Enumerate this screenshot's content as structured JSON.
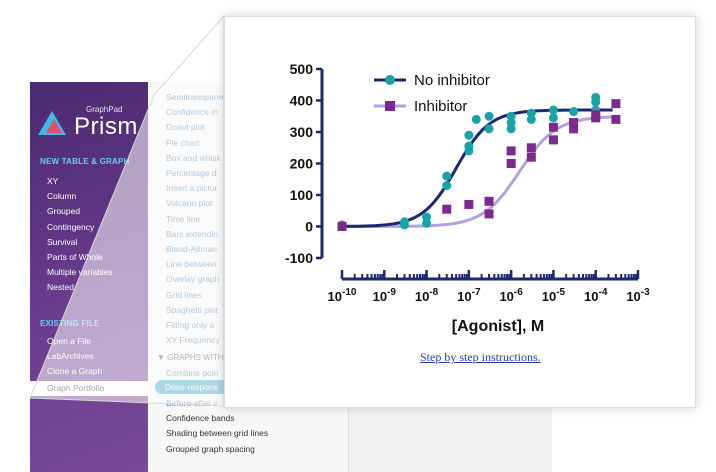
{
  "sidebar": {
    "logo_small": "GraphPad",
    "logo_big": "Prism",
    "section1": "NEW TABLE & GRAPH",
    "section1_items": [
      "XY",
      "Column",
      "Grouped",
      "Contingency",
      "Survival",
      "Parts of Whole",
      "Multiple variables",
      "Nested"
    ],
    "section2": "EXISTING FILE",
    "section2_items": [
      "Open a File",
      "LabArchives",
      "Clone a Graph"
    ],
    "selected_item": "Graph Portfolio"
  },
  "list": {
    "items_top": [
      "Semitransparent",
      "Confidence in",
      "Donut plot",
      "Pie chart",
      "Box and whisk",
      "Percentage d",
      "Insert a pictur",
      "Volcano plot",
      "Time line",
      "Bars extendin",
      "Bland-Altman",
      "Line between",
      "Overlay graph",
      "Grid lines",
      "Spaghetti plot",
      "Fitting only a",
      "XY Frequency"
    ],
    "group_head": "▼ GRAPHS WITH",
    "items_group": [
      "Combine poin"
    ],
    "selected_item": "Dose-respons",
    "items_bottom": [
      "Before-after v",
      "Confidence bands",
      "Shading between grid lines",
      "Grouped graph spacing"
    ]
  },
  "panel": {
    "link_text": "Step by step instructions",
    "link_suffix": "."
  },
  "chart_data": {
    "type": "scatter",
    "xlabel": "[Agonist], M",
    "ylabel": "",
    "xscale": "log",
    "xlim": [
      1e-10,
      0.001
    ],
    "ylim": [
      -100,
      500
    ],
    "yticks": [
      "500",
      "400",
      "300",
      "200",
      "100",
      "0",
      "-100"
    ],
    "xtick_bases": [
      "10",
      "10",
      "10",
      "10",
      "10",
      "10",
      "10",
      "10"
    ],
    "xtick_exps": [
      "-10",
      "-9",
      "-8",
      "-7",
      "-6",
      "-5",
      "-4",
      "-3"
    ],
    "legend_placement": "top-left",
    "series": [
      {
        "name": "No inhibitor",
        "color": "#1a2a6c",
        "marker_color": "#1aa3a6",
        "marker": "circle",
        "points": [
          [
            1e-10,
            5
          ],
          [
            1e-10,
            0
          ],
          [
            3e-09,
            15
          ],
          [
            3e-09,
            5
          ],
          [
            1e-08,
            30
          ],
          [
            1e-08,
            10
          ],
          [
            3e-08,
            160
          ],
          [
            3e-08,
            130
          ],
          [
            1e-07,
            255
          ],
          [
            1e-07,
            290
          ],
          [
            1e-07,
            240
          ],
          [
            1.5e-07,
            340
          ],
          [
            3e-07,
            310
          ],
          [
            3e-07,
            350
          ],
          [
            1e-06,
            330
          ],
          [
            1e-06,
            350
          ],
          [
            1e-06,
            310
          ],
          [
            3e-06,
            360
          ],
          [
            3e-06,
            340
          ],
          [
            1e-05,
            370
          ],
          [
            1e-05,
            345
          ],
          [
            3e-05,
            365
          ],
          [
            0.0001,
            410
          ],
          [
            0.0001,
            395
          ],
          [
            0.0001,
            370
          ]
        ]
      },
      {
        "name": "Inhibitor",
        "color": "#b59fdc",
        "marker_color": "#7b2a8e",
        "marker": "square",
        "points": [
          [
            1e-10,
            0
          ],
          [
            3e-08,
            55
          ],
          [
            1e-07,
            70
          ],
          [
            3e-07,
            80
          ],
          [
            3e-07,
            40
          ],
          [
            1e-06,
            240
          ],
          [
            1e-06,
            200
          ],
          [
            3e-06,
            250
          ],
          [
            3e-06,
            220
          ],
          [
            1e-05,
            315
          ],
          [
            1e-05,
            275
          ],
          [
            3e-05,
            330
          ],
          [
            3e-05,
            310
          ],
          [
            0.0001,
            355
          ],
          [
            0.0001,
            345
          ],
          [
            0.0003,
            390
          ],
          [
            0.0003,
            340
          ]
        ]
      }
    ]
  }
}
